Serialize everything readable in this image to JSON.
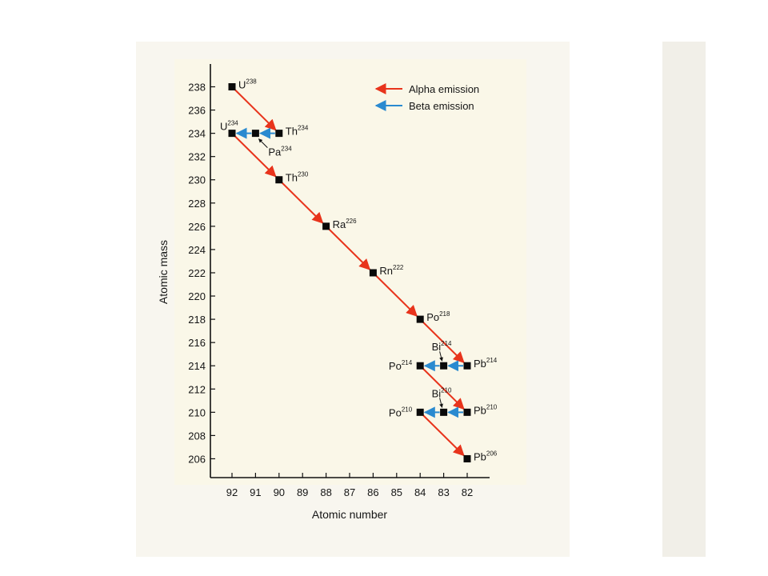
{
  "page": {
    "background": "#ffffff",
    "scan_background": "#f8f6ef",
    "plot_background": "#faf7e8"
  },
  "chart_data": {
    "type": "scatter",
    "title": "",
    "xlabel": "Atomic number",
    "ylabel": "Atomic mass",
    "x_reversed": true,
    "xlim": [
      92,
      82
    ],
    "ylim": [
      206,
      238
    ],
    "xticks": [
      92,
      91,
      90,
      89,
      88,
      87,
      86,
      85,
      84,
      83,
      82
    ],
    "yticks": [
      238,
      236,
      234,
      232,
      230,
      228,
      226,
      224,
      222,
      220,
      218,
      216,
      214,
      212,
      210,
      208,
      206
    ],
    "grid": false,
    "legend": {
      "placement": "top-right",
      "entries": [
        {
          "label": "Alpha emission",
          "color": "#e8341c"
        },
        {
          "label": "Beta emission",
          "color": "#2a8ad0"
        }
      ]
    },
    "points": [
      {
        "symbol": "U",
        "mass": "238",
        "x": 92,
        "y": 238,
        "label_side": "right"
      },
      {
        "symbol": "Th",
        "mass": "234",
        "x": 90,
        "y": 234,
        "label_side": "right"
      },
      {
        "symbol": "Pa",
        "mass": "234",
        "x": 91,
        "y": 234,
        "label_side": "below"
      },
      {
        "symbol": "U",
        "mass": "234",
        "x": 92,
        "y": 234,
        "label_side": "above-left"
      },
      {
        "symbol": "Th",
        "mass": "230",
        "x": 90,
        "y": 230,
        "label_side": "right"
      },
      {
        "symbol": "Ra",
        "mass": "226",
        "x": 88,
        "y": 226,
        "label_side": "right"
      },
      {
        "symbol": "Rn",
        "mass": "222",
        "x": 86,
        "y": 222,
        "label_side": "right"
      },
      {
        "symbol": "Po",
        "mass": "218",
        "x": 84,
        "y": 218,
        "label_side": "right"
      },
      {
        "symbol": "Pb",
        "mass": "214",
        "x": 82,
        "y": 214,
        "label_side": "right"
      },
      {
        "symbol": "Bi",
        "mass": "214",
        "x": 83,
        "y": 214,
        "label_side": "above-left"
      },
      {
        "symbol": "Po",
        "mass": "214",
        "x": 84,
        "y": 214,
        "label_side": "left"
      },
      {
        "symbol": "Pb",
        "mass": "210",
        "x": 82,
        "y": 210,
        "label_side": "right"
      },
      {
        "symbol": "Bi",
        "mass": "210",
        "x": 83,
        "y": 210,
        "label_side": "above-left"
      },
      {
        "symbol": "Po",
        "mass": "210",
        "x": 84,
        "y": 210,
        "label_side": "left"
      },
      {
        "symbol": "Pb",
        "mass": "206",
        "x": 82,
        "y": 206,
        "label_side": "right"
      }
    ],
    "transitions": [
      {
        "type": "alpha",
        "from": [
          92,
          238
        ],
        "to": [
          90,
          234
        ]
      },
      {
        "type": "beta",
        "from": [
          90,
          234
        ],
        "to": [
          91,
          234
        ]
      },
      {
        "type": "beta",
        "from": [
          91,
          234
        ],
        "to": [
          92,
          234
        ]
      },
      {
        "type": "alpha",
        "from": [
          92,
          234
        ],
        "to": [
          90,
          230
        ]
      },
      {
        "type": "alpha",
        "from": [
          90,
          230
        ],
        "to": [
          88,
          226
        ]
      },
      {
        "type": "alpha",
        "from": [
          88,
          226
        ],
        "to": [
          86,
          222
        ]
      },
      {
        "type": "alpha",
        "from": [
          86,
          222
        ],
        "to": [
          84,
          218
        ]
      },
      {
        "type": "alpha",
        "from": [
          84,
          218
        ],
        "to": [
          82,
          214
        ]
      },
      {
        "type": "beta",
        "from": [
          82,
          214
        ],
        "to": [
          83,
          214
        ]
      },
      {
        "type": "beta",
        "from": [
          83,
          214
        ],
        "to": [
          84,
          214
        ]
      },
      {
        "type": "alpha",
        "from": [
          84,
          214
        ],
        "to": [
          82,
          210
        ]
      },
      {
        "type": "beta",
        "from": [
          82,
          210
        ],
        "to": [
          83,
          210
        ]
      },
      {
        "type": "beta",
        "from": [
          83,
          210
        ],
        "to": [
          84,
          210
        ]
      },
      {
        "type": "alpha",
        "from": [
          84,
          210
        ],
        "to": [
          82,
          206
        ]
      }
    ]
  }
}
